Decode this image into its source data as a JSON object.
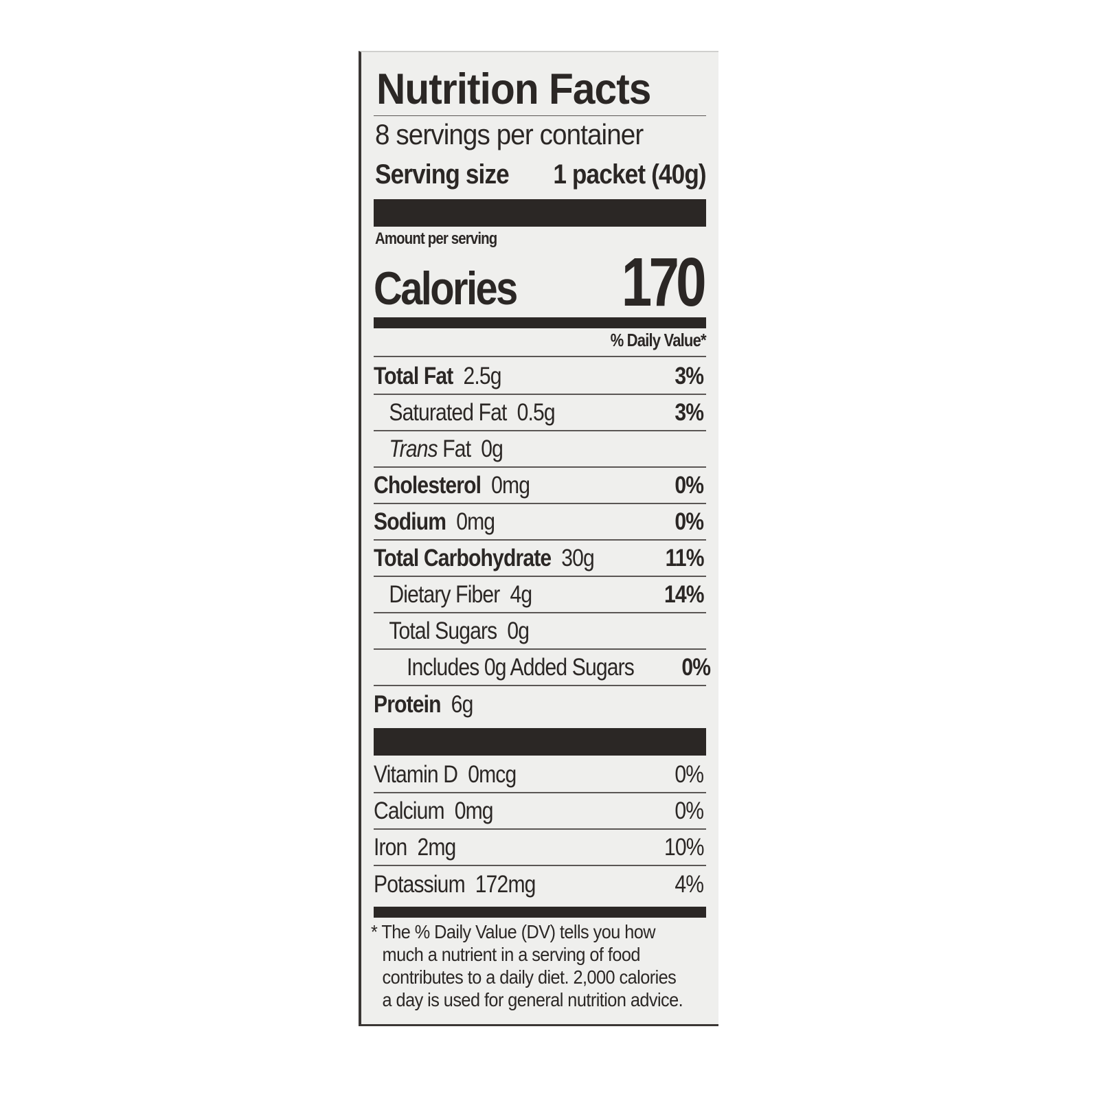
{
  "title": "Nutrition Facts",
  "servings_per_container": "8 servings per container",
  "serving_size_label": "Serving size",
  "serving_size_value": "1 packet (40g)",
  "amount_per_serving": "Amount per serving",
  "calories_label": "Calories",
  "calories_value": "170",
  "daily_value_header": "% Daily Value*",
  "nutrients": [
    {
      "name": "Total Fat",
      "amount": "2.5g",
      "dv": "3%",
      "bold": true,
      "indent": 0
    },
    {
      "name": "Saturated Fat",
      "amount": "0.5g",
      "dv": "3%",
      "bold": false,
      "indent": 1
    },
    {
      "name": "Trans",
      "name_suffix": "Fat",
      "amount": "0g",
      "dv": "",
      "bold": false,
      "indent": 1
    },
    {
      "name": "Cholesterol",
      "amount": "0mg",
      "dv": "0%",
      "bold": true,
      "indent": 0
    },
    {
      "name": "Sodium",
      "amount": "0mg",
      "dv": "0%",
      "bold": true,
      "indent": 0
    },
    {
      "name": "Total Carbohydrate",
      "amount": "30g",
      "dv": "11%",
      "bold": true,
      "indent": 0
    },
    {
      "name": "Dietary Fiber",
      "amount": "4g",
      "dv": "14%",
      "bold": false,
      "indent": 1
    },
    {
      "name": "Total Sugars",
      "amount": "0g",
      "dv": "",
      "bold": false,
      "indent": 1
    },
    {
      "name": "Includes 0g Added Sugars",
      "amount": "",
      "dv": "0%",
      "bold": false,
      "indent": 2
    },
    {
      "name": "Protein",
      "amount": "6g",
      "dv": "",
      "bold": true,
      "indent": 0
    }
  ],
  "vitamins": [
    {
      "name": "Vitamin D",
      "amount": "0mcg",
      "dv": "0%"
    },
    {
      "name": "Calcium",
      "amount": "0mg",
      "dv": "0%"
    },
    {
      "name": "Iron",
      "amount": "2mg",
      "dv": "10%"
    },
    {
      "name": "Potassium",
      "amount": "172mg",
      "dv": "4%"
    }
  ],
  "footnote": [
    "* The % Daily Value (DV) tells you how",
    "much a nutrient in a serving of food",
    "contributes to a daily diet. 2,000 calories",
    "a day is used for general nutrition advice."
  ],
  "colors": {
    "ink": "#2b2725",
    "paper": "#efefed"
  }
}
